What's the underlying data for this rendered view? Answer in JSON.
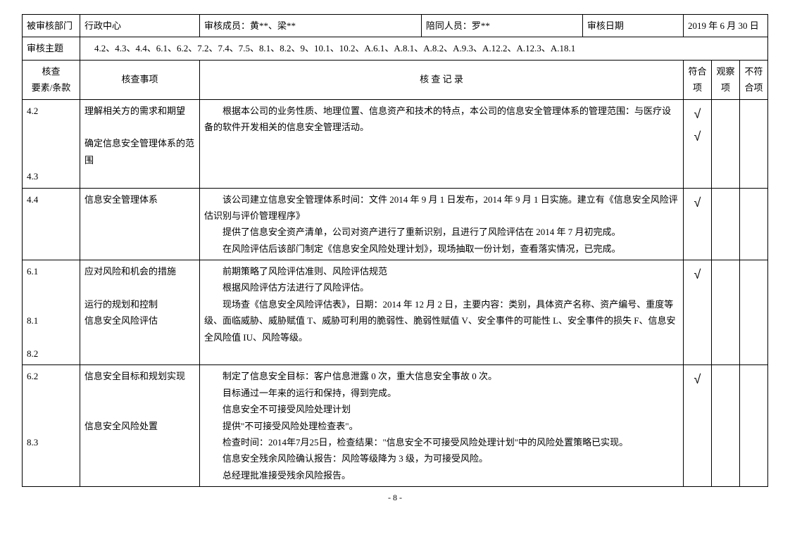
{
  "header": {
    "dept_label": "被审核部门",
    "dept_value": "行政中心",
    "members_label": "审核成员：",
    "members_value": "黄**、梁**",
    "accompany_label": "陪同人员：",
    "accompany_value": "罗**",
    "date_label": "审核日期",
    "date_value": "2019 年 6 月 30 日"
  },
  "theme": {
    "label": "审核主题",
    "value": "4.2、4.3、4.4、6.1、6.2、7.2、7.4、7.5、8.1、8.2、9、10.1、10.2、A.6.1、A.8.1、A.8.2、A.9.3、A.12.2、A.12.3、A.18.1"
  },
  "columns": {
    "elem": "核查\n要素/条款",
    "item": "核查事项",
    "record": "核 查 记 录",
    "conform": "符合项",
    "observe": "观察项",
    "nonconform": "不符合项"
  },
  "rows": [
    {
      "elem": "4.2\n\n\n\n4.3",
      "item": "理解相关方的需求和期望\n\n确定信息安全管理体系的范围",
      "record": "　　根据本公司的业务性质、地理位置、信息资产和技术的特点，本公司的信息安全管理体系的管理范围：与医疗设备的软件开发相关的信息安全管理活动。",
      "conform": "√\n√",
      "observe": "",
      "nonconform": ""
    },
    {
      "elem": "4.4",
      "item": "信息安全管理体系",
      "record": "　　该公司建立信息安全管理体系时间：文件 2014 年 9 月 1 日发布，2014 年 9 月 1 日实施。建立有《信息安全风险评估识别与评价管理程序》\n　　提供了信息安全资产清单，公司对资产进行了重新识别，且进行了风险评估在 2014 年 7 月初完成。\n　　在风险评估后该部门制定《信息安全风险处理计划》，现场抽取一份计划，查看落实情况，已完成。",
      "conform": "√",
      "observe": "",
      "nonconform": ""
    },
    {
      "elem": "6.1\n\n\n8.1\n\n8.2",
      "item": "应对风险和机会的措施\n\n运行的规划和控制\n信息安全风险评估",
      "record": "　　前期策略了风险评估准则、风险评估规范\n　　根据风险评估方法进行了风险评估。\n　　现场查《信息安全风险评估表》，日期：2014 年 12 月 2 日，主要内容：类别，具体资产名称、资产编号、重度等级、面临威胁、威胁赋值 T、威胁可利用的脆弱性、脆弱性赋值 V、安全事件的可能性 L、安全事件的损失 F、信息安全风险值 IU、风险等级。",
      "conform": "√",
      "observe": "",
      "nonconform": ""
    },
    {
      "elem": "6.2\n\n\n\n8.3",
      "item": "信息安全目标和规划实现\n\n\n信息安全风险处置",
      "record": "　　制定了信息安全目标：客户信息泄露 0 次，重大信息安全事故 0 次。\n　　目标通过一年来的运行和保持，得到完成。\n　　信息安全不可接受风险处理计划\n　　提供\"不可接受风险处理检查表\"。\n　　检查时间：2014年7月25日，检查结果：\"信息安全不可接受风险处理计划\"中的风险处置策略已实现。\n　　信息安全残余风险确认报告：风险等级降为 3 级，为可接受风险。\n　　总经理批准接受残余风险报告。",
      "conform": "√",
      "observe": "",
      "nonconform": ""
    }
  ],
  "page_number": "- 8 -"
}
